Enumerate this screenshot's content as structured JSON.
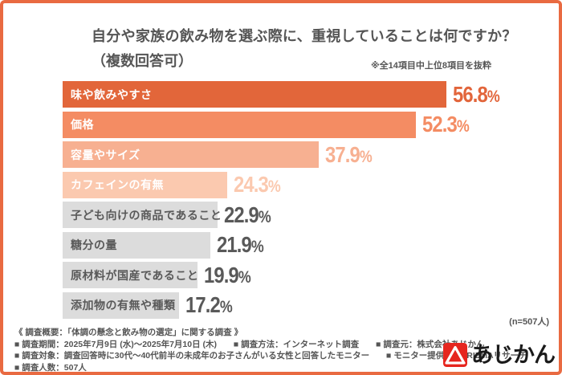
{
  "title": {
    "line1": "自分や家族の飲み物を選ぶ際に、重視していることは何ですか？",
    "line2": "（複数回答可）"
  },
  "excerpt_note": "※全14項目中上位8項目を抜粋",
  "sample_note": "(n=507人)",
  "chart_data": {
    "type": "bar",
    "orientation": "horizontal",
    "unit": "%",
    "title": "自分や家族の飲み物を選ぶ際に、重視していることは何ですか？（複数回答可）",
    "categories": [
      "味や飲みやすさ",
      "価格",
      "容量やサイズ",
      "カフェインの有無",
      "子ども向けの商品であること",
      "糖分の量",
      "原材料が国産であること",
      "添加物の有無や種類"
    ],
    "values": [
      56.8,
      52.3,
      37.9,
      24.3,
      22.9,
      21.9,
      19.9,
      17.2
    ],
    "value_labels": [
      "56.8",
      "52.3",
      "37.9",
      "24.3",
      "22.9",
      "21.9",
      "19.9",
      "17.2"
    ],
    "xlim": [
      0,
      66
    ],
    "grid": false,
    "bar_colors": [
      "#e2663a",
      "#f48c63",
      "#f7b091",
      "#fbc9af",
      "#dcdcdc",
      "#dcdcdc",
      "#dcdcdc",
      "#dcdcdc"
    ],
    "category_label_colors": [
      "#ffffff",
      "#ffffff",
      "#ffffff",
      "#ffffff",
      "#595959",
      "#595959",
      "#595959",
      "#595959"
    ],
    "value_label_colors": [
      "#e2653b",
      "#f48c63",
      "#f7b091",
      "#fbc9af",
      "#595959",
      "#595959",
      "#595959",
      "#595959"
    ]
  },
  "footer": {
    "summary": "《 調査概要：「体調の懸念と飲み物の選定」に関する調査 》",
    "line2": [
      "■ 調査期間：2025年7月9日 (水)～2025年7月10日 (木)",
      "■ 調査方法：インターネット調査",
      "■ 調査元：株式会社あじかん"
    ],
    "line3": [
      "■ 調査対象：調査回答時に30代～40代前半の未成年のお子さんがいる女性と回答したモニター",
      "■ モニター提供元：PRIZMAリサーチ"
    ],
    "line4": [
      "■ 調査人数：507人"
    ]
  },
  "logo": {
    "text": "あじかん",
    "mark": "triangle-in-red-square-icon",
    "red": "#e6261f",
    "text_color": "#1a1a1a"
  },
  "colors": {
    "border": "#e96a41",
    "heading_text": "#555555",
    "background": "#ffffff"
  }
}
